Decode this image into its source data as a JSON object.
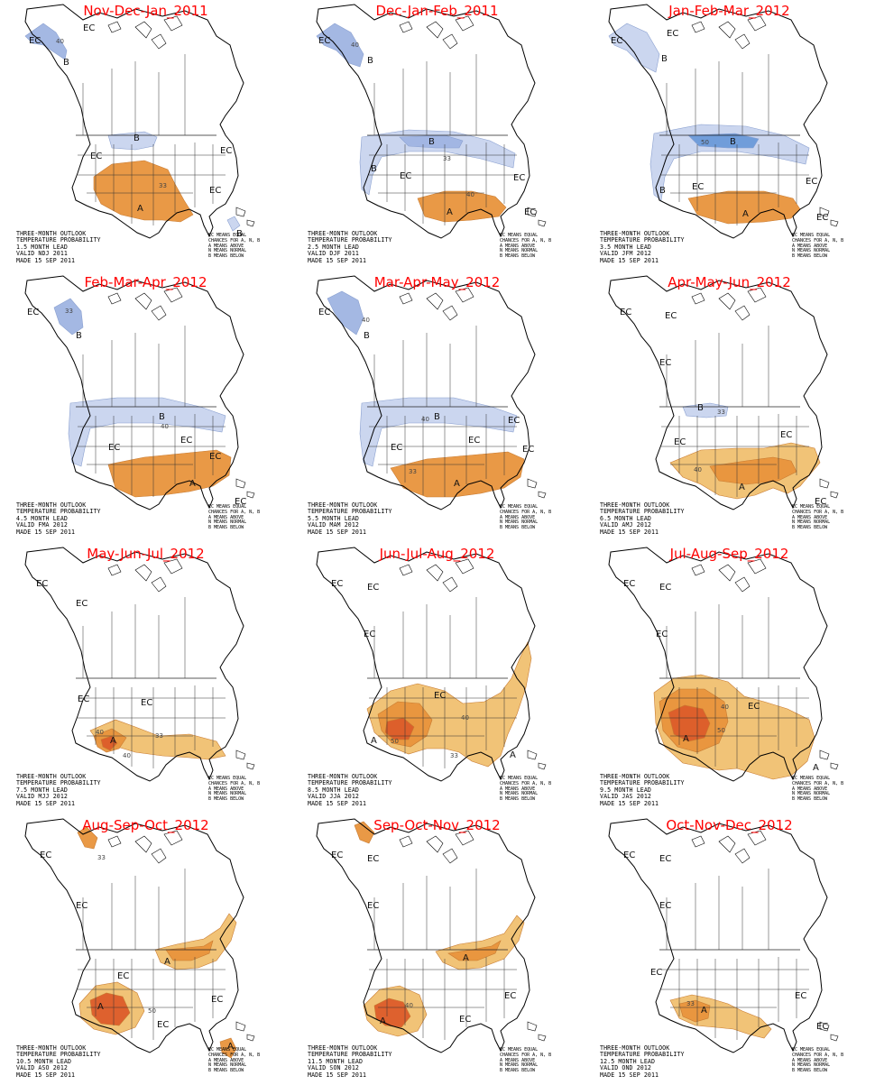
{
  "legend_lines": [
    "EC MEANS EQUAL",
    "CHANCES FOR A, N, B",
    "A MEANS ABOVE",
    "N MEANS NORMAL",
    "B MEANS BELOW"
  ],
  "colors": {
    "above_33": "#f0c070",
    "above_40": "#e8943c",
    "above_50": "#dc5c2a",
    "below_33": "#c8d4ee",
    "below_40": "#9fb4e2",
    "below_50": "#6a9ad8",
    "title": "#ff0000"
  },
  "panels": [
    {
      "title": "Nov-Dec-Jan_2011",
      "info": [
        "THREE-MONTH OUTLOOK",
        "TEMPERATURE PROBABILITY",
        "1.5 MONTH LEAD",
        "VALID NDJ 2011",
        "MADE 15 SEP 2011"
      ],
      "labels": [
        {
          "t": "EC",
          "kind": "ec"
        },
        {
          "t": "EC",
          "kind": "ec"
        },
        {
          "t": "B",
          "kind": "cat"
        },
        {
          "t": "40",
          "kind": "contour"
        },
        {
          "t": "B",
          "kind": "cat"
        },
        {
          "t": "EC",
          "kind": "ec"
        },
        {
          "t": "A",
          "kind": "cat"
        },
        {
          "t": "33",
          "kind": "contour"
        },
        {
          "t": "EC",
          "kind": "ec"
        },
        {
          "t": "EC",
          "kind": "ec"
        },
        {
          "t": "B",
          "kind": "cat"
        }
      ]
    },
    {
      "title": "Dec-Jan-Feb_2011",
      "info": [
        "THREE-MONTH OUTLOOK",
        "TEMPERATURE PROBABILITY",
        "2.5 MONTH LEAD",
        "VALID DJF 2011",
        "MADE 15 SEP 2011"
      ],
      "labels": [
        {
          "t": "EC",
          "kind": "ec"
        },
        {
          "t": "40",
          "kind": "contour"
        },
        {
          "t": "B",
          "kind": "cat"
        },
        {
          "t": "B",
          "kind": "cat"
        },
        {
          "t": "33",
          "kind": "contour"
        },
        {
          "t": "B",
          "kind": "cat"
        },
        {
          "t": "EC",
          "kind": "ec"
        },
        {
          "t": "A",
          "kind": "cat"
        },
        {
          "t": "40",
          "kind": "contour"
        },
        {
          "t": "EC",
          "kind": "ec"
        },
        {
          "t": "EC",
          "kind": "ec"
        }
      ]
    },
    {
      "title": "Jan-Feb-Mar_2012",
      "info": [
        "THREE-MONTH OUTLOOK",
        "TEMPERATURE PROBABILITY",
        "3.5 MONTH LEAD",
        "VALID JFM 2012",
        "MADE 15 SEP 2011"
      ],
      "labels": [
        {
          "t": "EC",
          "kind": "ec"
        },
        {
          "t": "EC",
          "kind": "ec"
        },
        {
          "t": "B",
          "kind": "cat"
        },
        {
          "t": "B",
          "kind": "cat"
        },
        {
          "t": "50",
          "kind": "contour"
        },
        {
          "t": "B",
          "kind": "cat"
        },
        {
          "t": "EC",
          "kind": "ec"
        },
        {
          "t": "A",
          "kind": "cat"
        },
        {
          "t": "EC",
          "kind": "ec"
        },
        {
          "t": "EC",
          "kind": "ec"
        }
      ]
    },
    {
      "title": "Feb-Mar-Apr_2012",
      "info": [
        "THREE-MONTH OUTLOOK",
        "TEMPERATURE PROBABILITY",
        "4.5 MONTH LEAD",
        "VALID FMA 2012",
        "MADE 15 SEP 2011"
      ],
      "labels": [
        {
          "t": "EC",
          "kind": "ec"
        },
        {
          "t": "33",
          "kind": "contour"
        },
        {
          "t": "B",
          "kind": "cat"
        },
        {
          "t": "B",
          "kind": "cat"
        },
        {
          "t": "40",
          "kind": "contour"
        },
        {
          "t": "EC",
          "kind": "ec"
        },
        {
          "t": "EC",
          "kind": "ec"
        },
        {
          "t": "A",
          "kind": "cat"
        },
        {
          "t": "EC",
          "kind": "ec"
        },
        {
          "t": "EC",
          "kind": "ec"
        }
      ]
    },
    {
      "title": "Mar-Apr-May_2012",
      "info": [
        "THREE-MONTH OUTLOOK",
        "TEMPERATURE PROBABILITY",
        "5.5 MONTH LEAD",
        "VALID MAM 2012",
        "MADE 15 SEP 2011"
      ],
      "labels": [
        {
          "t": "EC",
          "kind": "ec"
        },
        {
          "t": "40",
          "kind": "contour"
        },
        {
          "t": "B",
          "kind": "cat"
        },
        {
          "t": "B",
          "kind": "cat"
        },
        {
          "t": "40",
          "kind": "contour"
        },
        {
          "t": "EC",
          "kind": "ec"
        },
        {
          "t": "EC",
          "kind": "ec"
        },
        {
          "t": "A",
          "kind": "cat"
        },
        {
          "t": "33",
          "kind": "contour"
        },
        {
          "t": "EC",
          "kind": "ec"
        },
        {
          "t": "EC",
          "kind": "ec"
        }
      ]
    },
    {
      "title": "Apr-May-Jun_2012",
      "info": [
        "THREE-MONTH OUTLOOK",
        "TEMPERATURE PROBABILITY",
        "6.5 MONTH LEAD",
        "VALID AMJ 2012",
        "MADE 15 SEP 2011"
      ],
      "labels": [
        {
          "t": "EC",
          "kind": "ec"
        },
        {
          "t": "EC",
          "kind": "ec"
        },
        {
          "t": "EC",
          "kind": "ec"
        },
        {
          "t": "B",
          "kind": "cat"
        },
        {
          "t": "33",
          "kind": "contour"
        },
        {
          "t": "EC",
          "kind": "ec"
        },
        {
          "t": "EC",
          "kind": "ec"
        },
        {
          "t": "A",
          "kind": "cat"
        },
        {
          "t": "40",
          "kind": "contour"
        },
        {
          "t": "EC",
          "kind": "ec"
        }
      ]
    },
    {
      "title": "May-Jun-Jul_2012",
      "info": [
        "THREE-MONTH OUTLOOK",
        "TEMPERATURE PROBABILITY",
        "7.5 MONTH LEAD",
        "VALID MJJ 2012",
        "MADE 15 SEP 2011"
      ],
      "labels": [
        {
          "t": "EC",
          "kind": "ec"
        },
        {
          "t": "EC",
          "kind": "ec"
        },
        {
          "t": "EC",
          "kind": "ec"
        },
        {
          "t": "EC",
          "kind": "ec"
        },
        {
          "t": "A",
          "kind": "cat"
        },
        {
          "t": "40",
          "kind": "contour"
        },
        {
          "t": "33",
          "kind": "contour"
        },
        {
          "t": "40",
          "kind": "contour"
        }
      ]
    },
    {
      "title": "Jun-Jul-Aug_2012",
      "info": [
        "THREE-MONTH OUTLOOK",
        "TEMPERATURE PROBABILITY",
        "8.5 MONTH LEAD",
        "VALID JJA 2012",
        "MADE 15 SEP 2011"
      ],
      "labels": [
        {
          "t": "EC",
          "kind": "ec"
        },
        {
          "t": "EC",
          "kind": "ec"
        },
        {
          "t": "EC",
          "kind": "ec"
        },
        {
          "t": "EC",
          "kind": "ec"
        },
        {
          "t": "A",
          "kind": "cat"
        },
        {
          "t": "50",
          "kind": "contour"
        },
        {
          "t": "40",
          "kind": "contour"
        },
        {
          "t": "33",
          "kind": "contour"
        },
        {
          "t": "A",
          "kind": "cat"
        }
      ]
    },
    {
      "title": "Jul-Aug-Sep_2012",
      "info": [
        "THREE-MONTH OUTLOOK",
        "TEMPERATURE PROBABILITY",
        "9.5 MONTH LEAD",
        "VALID JAS 2012",
        "MADE 15 SEP 2011"
      ],
      "labels": [
        {
          "t": "EC",
          "kind": "ec"
        },
        {
          "t": "EC",
          "kind": "ec"
        },
        {
          "t": "EC",
          "kind": "ec"
        },
        {
          "t": "EC",
          "kind": "ec"
        },
        {
          "t": "A",
          "kind": "cat"
        },
        {
          "t": "50",
          "kind": "contour"
        },
        {
          "t": "40",
          "kind": "contour"
        },
        {
          "t": "A",
          "kind": "cat"
        }
      ]
    },
    {
      "title": "Aug-Sep-Oct_2012",
      "info": [
        "THREE-MONTH OUTLOOK",
        "TEMPERATURE PROBABILITY",
        "10.5 MONTH LEAD",
        "VALID ASO 2012",
        "MADE 15 SEP 2011"
      ],
      "labels": [
        {
          "t": "EC",
          "kind": "ec"
        },
        {
          "t": "33",
          "kind": "contour"
        },
        {
          "t": "EC",
          "kind": "ec"
        },
        {
          "t": "EC",
          "kind": "ec"
        },
        {
          "t": "A",
          "kind": "cat"
        },
        {
          "t": "A",
          "kind": "cat"
        },
        {
          "t": "50",
          "kind": "contour"
        },
        {
          "t": "EC",
          "kind": "ec"
        },
        {
          "t": "EC",
          "kind": "ec"
        },
        {
          "t": "A",
          "kind": "cat"
        }
      ]
    },
    {
      "title": "Sep-Oct-Nov_2012",
      "info": [
        "THREE-MONTH OUTLOOK",
        "TEMPERATURE PROBABILITY",
        "11.5 MONTH LEAD",
        "VALID SON 2012",
        "MADE 15 SEP 2011"
      ],
      "labels": [
        {
          "t": "EC",
          "kind": "ec"
        },
        {
          "t": "EC",
          "kind": "ec"
        },
        {
          "t": "EC",
          "kind": "ec"
        },
        {
          "t": "A",
          "kind": "cat"
        },
        {
          "t": "A",
          "kind": "cat"
        },
        {
          "t": "40",
          "kind": "contour"
        },
        {
          "t": "EC",
          "kind": "ec"
        },
        {
          "t": "EC",
          "kind": "ec"
        }
      ]
    },
    {
      "title": "Oct-Nov-Dec_2012",
      "info": [
        "THREE-MONTH OUTLOOK",
        "TEMPERATURE PROBABILITY",
        "12.5 MONTH LEAD",
        "VALID OND 2012",
        "MADE 15 SEP 2011"
      ],
      "labels": [
        {
          "t": "EC",
          "kind": "ec"
        },
        {
          "t": "EC",
          "kind": "ec"
        },
        {
          "t": "EC",
          "kind": "ec"
        },
        {
          "t": "EC",
          "kind": "ec"
        },
        {
          "t": "A",
          "kind": "cat"
        },
        {
          "t": "33",
          "kind": "contour"
        },
        {
          "t": "EC",
          "kind": "ec"
        },
        {
          "t": "EC",
          "kind": "ec"
        }
      ]
    }
  ]
}
